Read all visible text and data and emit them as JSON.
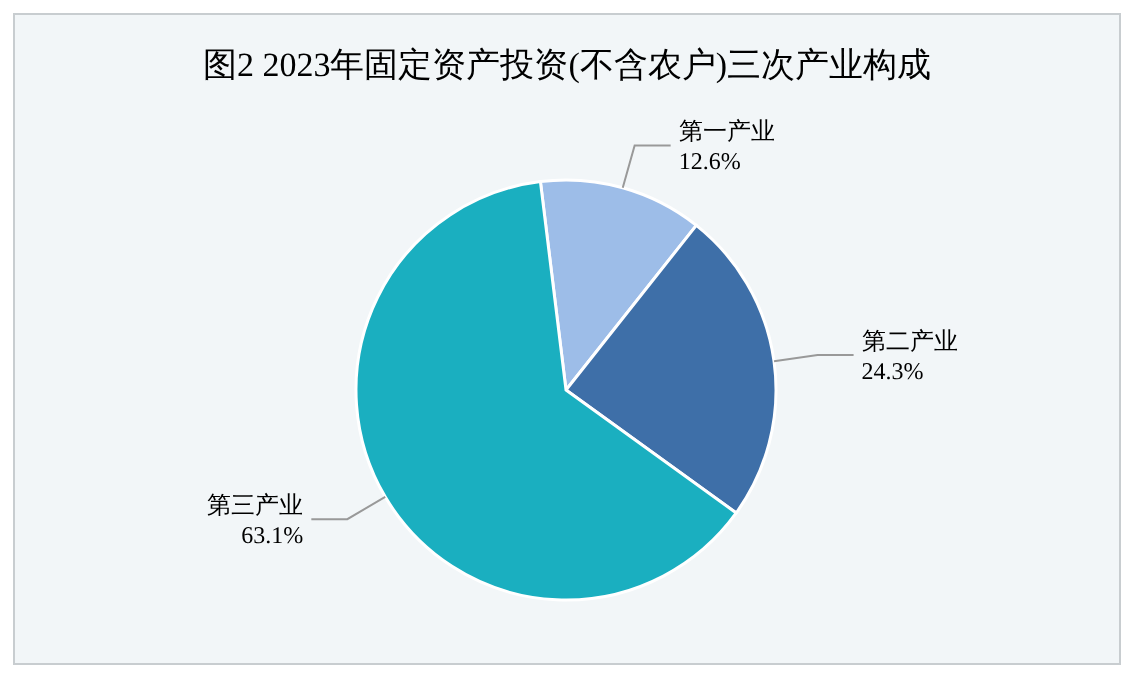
{
  "chart_data": {
    "type": "pie",
    "title": "图2 2023年固定资产投资(不含农户)三次产业构成",
    "categories": [
      "第一产业",
      "第二产业",
      "第三产业"
    ],
    "values": [
      12.6,
      24.3,
      63.1
    ],
    "colors": [
      "#9dbde8",
      "#3e6fa8",
      "#1aafc0"
    ],
    "value_labels": [
      "12.6%",
      "24.3%",
      "63.1%"
    ]
  }
}
